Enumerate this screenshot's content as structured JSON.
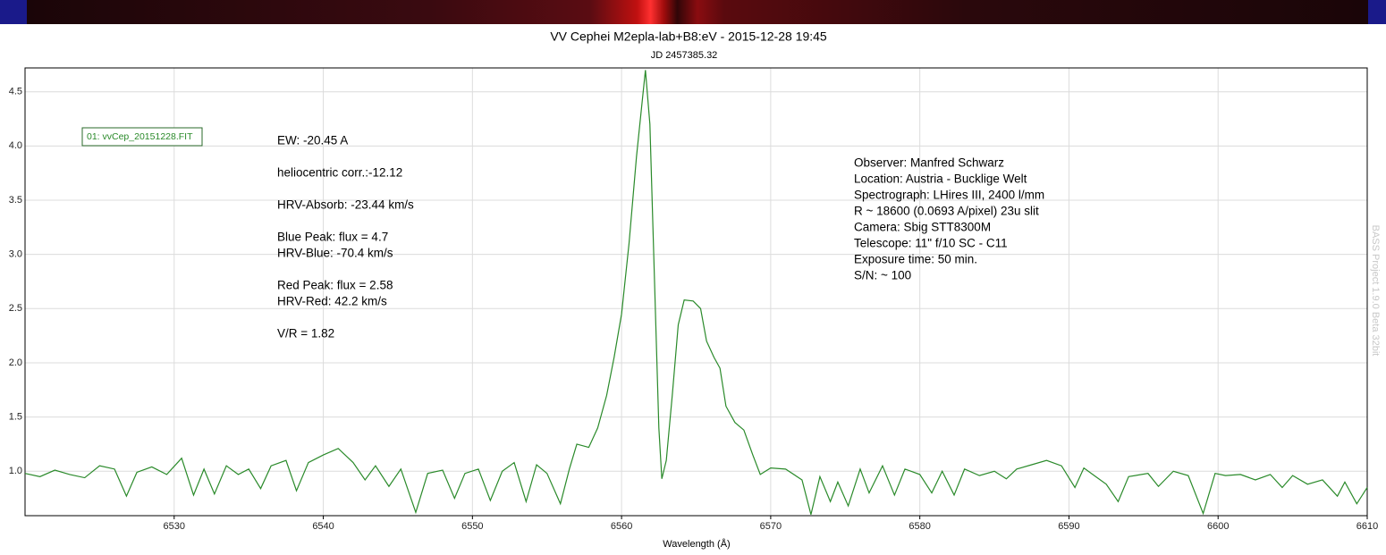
{
  "chart_data": {
    "type": "line",
    "title": "VV Cephei M2epla-lab+B8:eV - 2015-12-28 19:45",
    "subtitle": "JD 2457385.32",
    "x_label": "Wavelength (Å)",
    "watermark": "BASS Project 1.9.0 Beta 32bit",
    "xlim": [
      6520,
      6610
    ],
    "ylim": [
      0.59,
      4.72
    ],
    "xticks": [
      6530,
      6540,
      6550,
      6560,
      6570,
      6580,
      6590,
      6600,
      6610
    ],
    "yticks": [
      {
        "value": 1,
        "label": "1.0"
      },
      {
        "value": 1.5,
        "label": "1.5"
      },
      {
        "value": 2,
        "label": "2.0"
      },
      {
        "value": 2.5,
        "label": "2.5"
      },
      {
        "value": 3,
        "label": "3.0"
      },
      {
        "value": 3.5,
        "label": "3.5"
      },
      {
        "value": 4,
        "label": "4.0"
      },
      {
        "value": 4.5,
        "label": "4.5"
      }
    ],
    "grid": true,
    "x": [
      6520,
      6521,
      6522,
      6523,
      6524,
      6525,
      6526,
      6526.8,
      6527.5,
      6528.5,
      6529.5,
      6530.5,
      6531.3,
      6532,
      6532.7,
      6533.5,
      6534.3,
      6535,
      6535.8,
      6536.5,
      6537.5,
      6538.2,
      6539,
      6540,
      6541,
      6542,
      6542.8,
      6543.5,
      6544.4,
      6545.2,
      6546.2,
      6547,
      6548,
      6548.8,
      6549.5,
      6550.4,
      6551.2,
      6552,
      6552.8,
      6553.6,
      6554.3,
      6555,
      6555.9,
      6556.5,
      6557,
      6557.8,
      6558.4,
      6559,
      6559.5,
      6560,
      6560.5,
      6561,
      6561.3,
      6561.6,
      6561.9,
      6562.2,
      6562.5,
      6562.7,
      6563,
      6563.4,
      6563.8,
      6564.2,
      6564.8,
      6565.3,
      6565.7,
      6566.2,
      6566.6,
      6567,
      6567.6,
      6568.2,
      6568.8,
      6569.3,
      6570,
      6571,
      6572.1,
      6572.7,
      6573.3,
      6574,
      6574.5,
      6575.2,
      6576,
      6576.6,
      6577.5,
      6578.3,
      6579,
      6580,
      6580.8,
      6581.5,
      6582.3,
      6583,
      6584,
      6585,
      6585.8,
      6586.5,
      6587.5,
      6588.5,
      6589.5,
      6590.4,
      6591,
      6591.8,
      6592.5,
      6593.3,
      6594,
      6595.3,
      6596,
      6597,
      6598,
      6599,
      6599.8,
      6600.5,
      6601.5,
      6602.5,
      6603.5,
      6604.3,
      6605,
      6606,
      6607,
      6608,
      6608.5,
      6609.3,
      6610
    ],
    "series": [
      {
        "name": "01: vvCep_20151228.FIT",
        "color": "#2a8a2a",
        "values": [
          0.98,
          0.95,
          1.01,
          0.97,
          0.94,
          1.05,
          1.02,
          0.77,
          0.99,
          1.04,
          0.97,
          1.12,
          0.78,
          1.02,
          0.79,
          1.05,
          0.97,
          1.02,
          0.84,
          1.05,
          1.1,
          0.82,
          1.08,
          1.15,
          1.21,
          1.08,
          0.92,
          1.05,
          0.86,
          1.02,
          0.62,
          0.98,
          1.01,
          0.75,
          0.98,
          1.02,
          0.73,
          1.0,
          1.08,
          0.72,
          1.06,
          0.98,
          0.7,
          1.02,
          1.25,
          1.22,
          1.4,
          1.7,
          2.05,
          2.45,
          3.1,
          3.9,
          4.3,
          4.7,
          4.2,
          2.8,
          1.4,
          0.93,
          1.1,
          1.7,
          2.35,
          2.58,
          2.57,
          2.5,
          2.2,
          2.05,
          1.95,
          1.6,
          1.45,
          1.38,
          1.15,
          0.97,
          1.03,
          1.02,
          0.92,
          0.6,
          0.95,
          0.72,
          0.9,
          0.68,
          1.02,
          0.8,
          1.05,
          0.78,
          1.02,
          0.97,
          0.8,
          1.0,
          0.78,
          1.02,
          0.96,
          1.0,
          0.93,
          1.02,
          1.06,
          1.1,
          1.05,
          0.85,
          1.03,
          0.95,
          0.88,
          0.72,
          0.95,
          0.98,
          0.86,
          1.0,
          0.96,
          0.61,
          0.98,
          0.96,
          0.97,
          0.92,
          0.97,
          0.85,
          0.96,
          0.88,
          0.92,
          0.77,
          0.9,
          0.7,
          0.85
        ]
      }
    ],
    "annotations_left": [
      "EW: -20.45 A",
      "heliocentric corr.:-12.12",
      "HRV-Absorb: -23.44 km/s",
      "Blue Peak:  flux = 4.7",
      "HRV-Blue: -70.4 km/s",
      "Red Peak:  flux = 2.58",
      "HRV-Red: 42.2 km/s",
      "V/R = 1.82"
    ],
    "annotations_right": [
      "Observer: Manfred Schwarz",
      "Location: Austria - Bucklige Welt",
      "Spectrograph: LHires III, 2400 l/mm",
      "R ~ 18600 (0.0693 A/pixel) 23u slit",
      "Camera: Sbig STT8300M",
      "Telescope: 11\" f/10 SC - C11",
      "Exposure time: 50 min.",
      "S/N:  ~ 100"
    ]
  }
}
